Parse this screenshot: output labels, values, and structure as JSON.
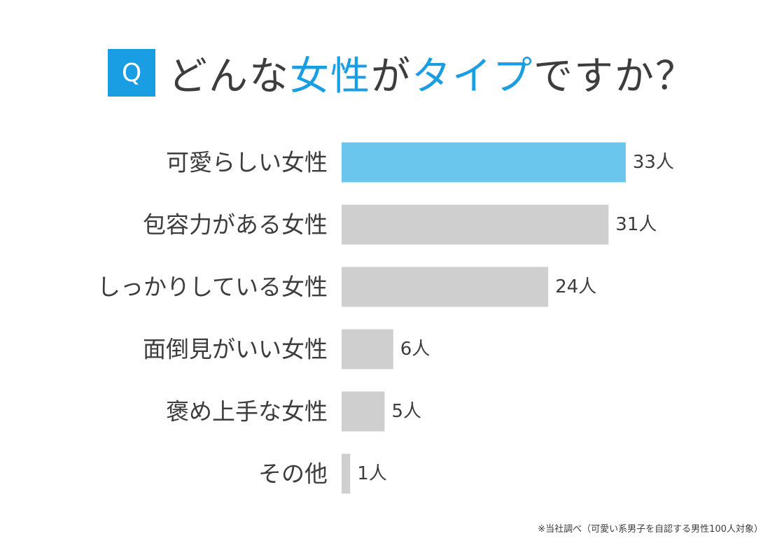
{
  "header": {
    "q_label": "Q",
    "title_part1": "どんな",
    "title_part2": "女性",
    "title_part3": "が",
    "title_part4": "タイプ",
    "title_part5": "ですか？"
  },
  "colors": {
    "highlight": "#6ac6ec",
    "default_bar": "#cfcfd0",
    "accent": "#1a9ee3"
  },
  "chart_data": {
    "type": "bar",
    "orientation": "horizontal",
    "categories": [
      "可愛らしい女性",
      "包容力がある女性",
      "しっかりしている女性",
      "面倒見がいい女性",
      "褒め上手な女性",
      "その他"
    ],
    "values": [
      33,
      31,
      24,
      6,
      5,
      1
    ],
    "value_labels": [
      "33人",
      "31人",
      "24人",
      "6人",
      "5人",
      "1人"
    ],
    "highlight_index": 0,
    "title": "",
    "xlabel": "",
    "ylabel": "",
    "grid": false
  },
  "footnote": "※当社調べ（可愛い系男子を自認する男性100人対象）"
}
